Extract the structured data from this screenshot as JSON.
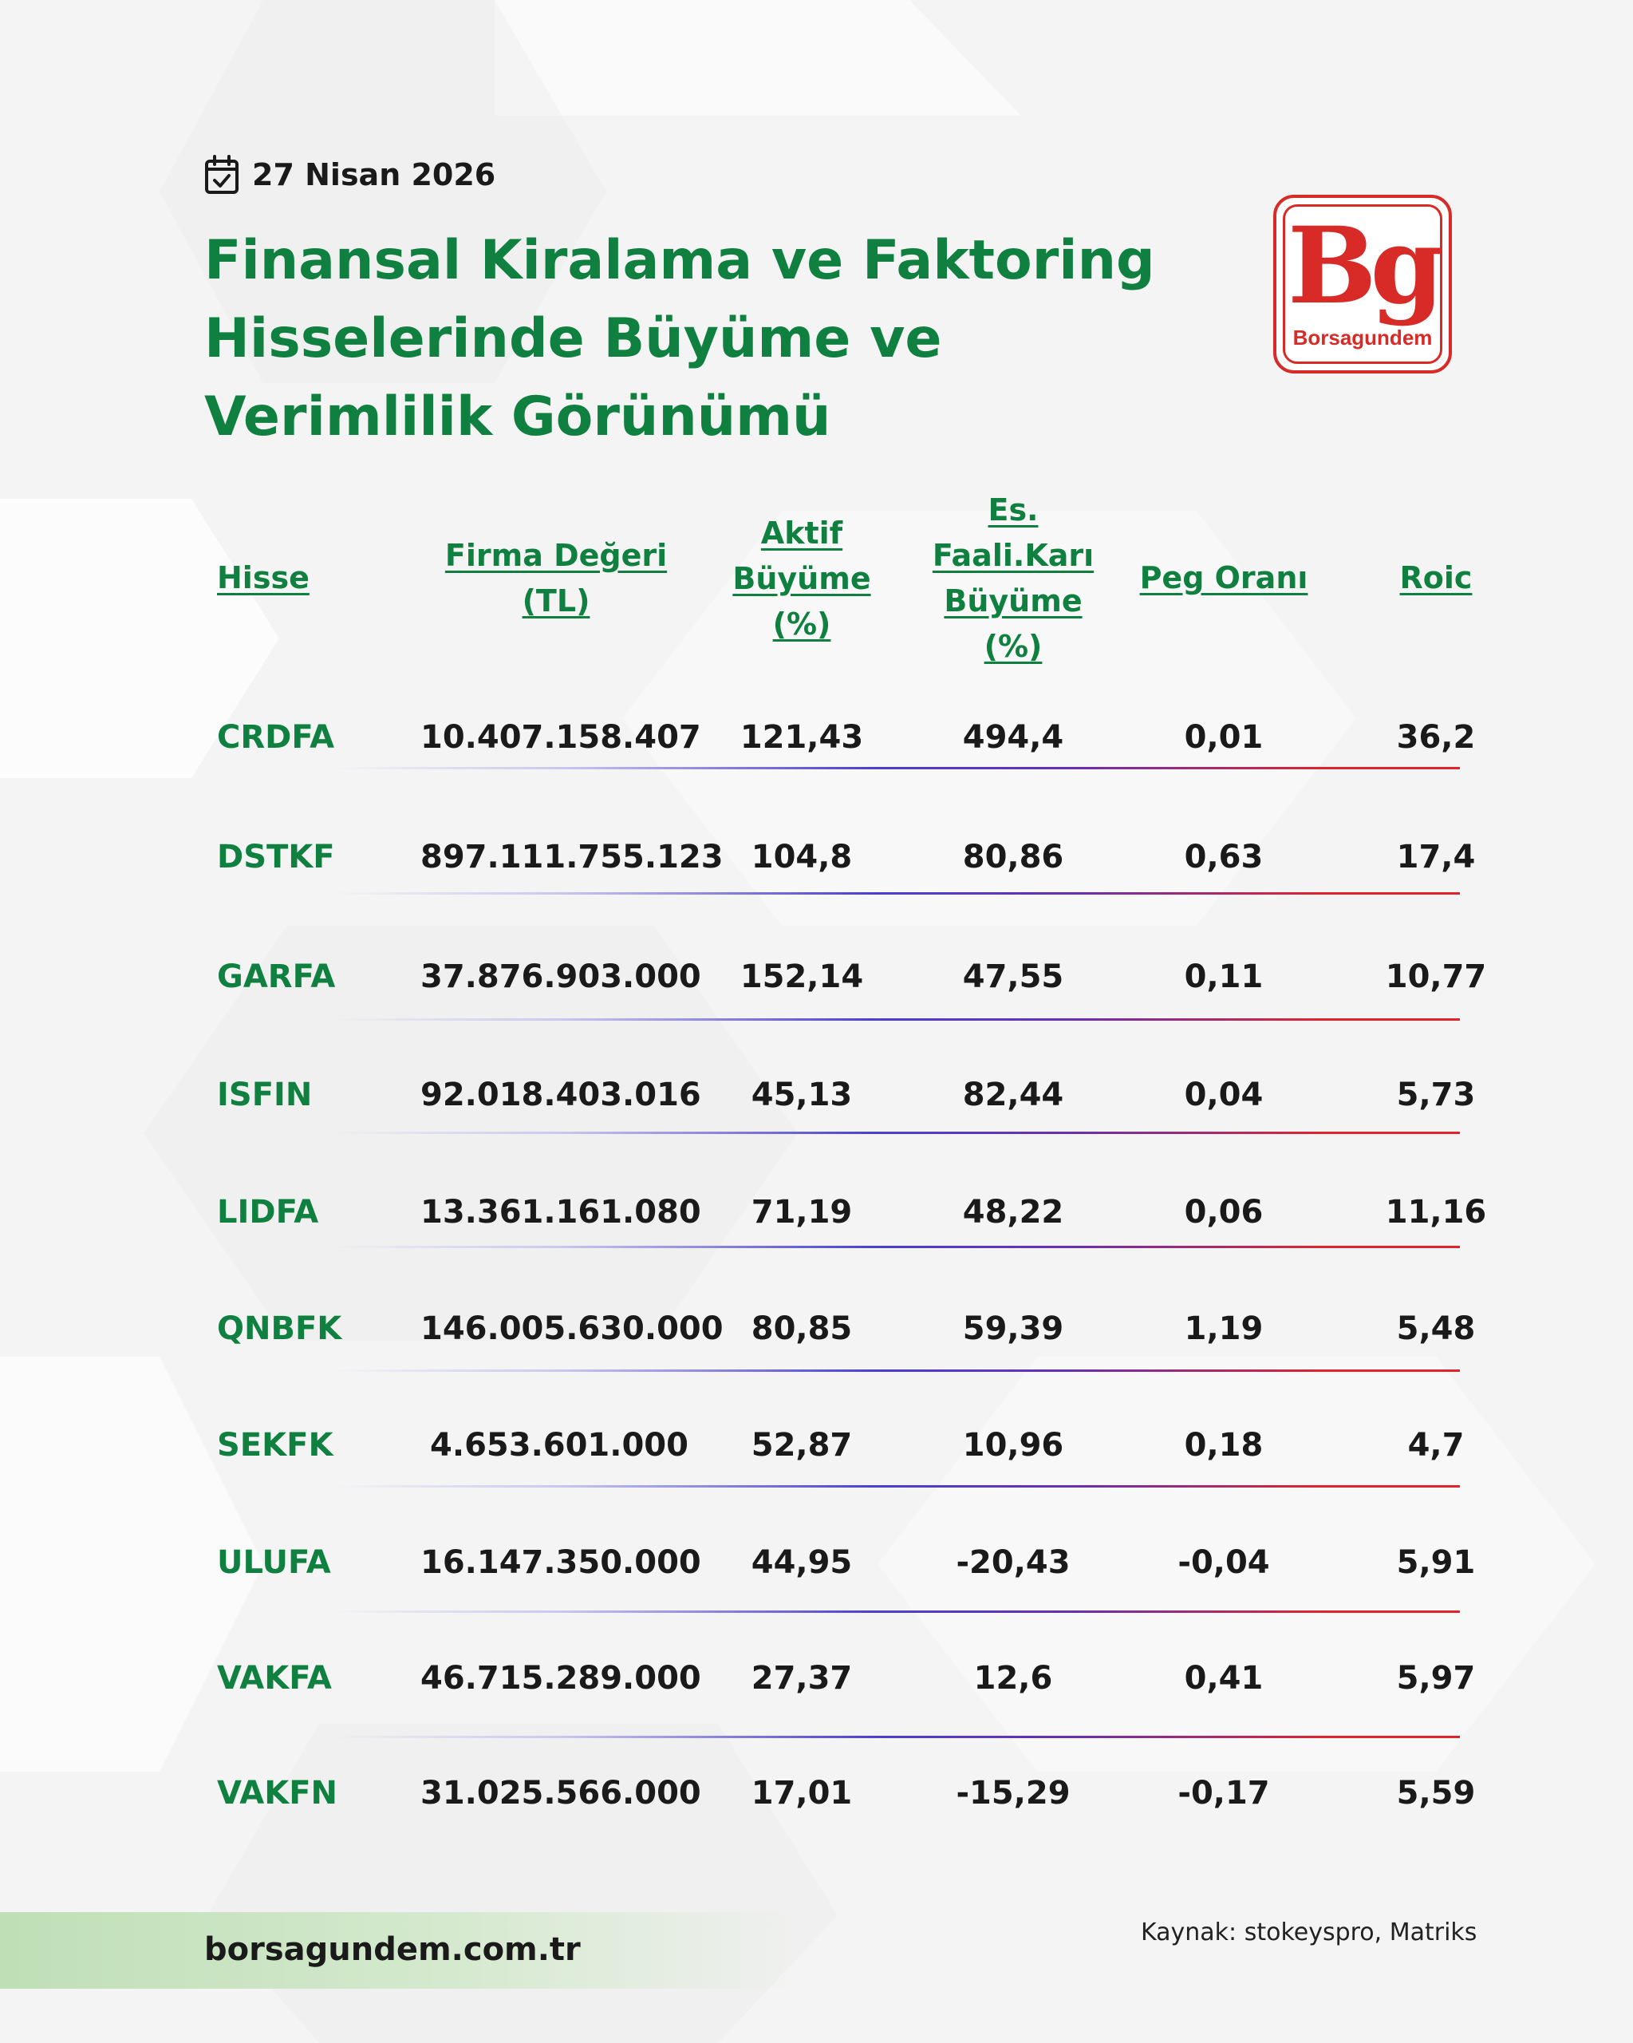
{
  "date": "27 Nisan 2026",
  "icons": {
    "date": "calendar-check-icon"
  },
  "title": "Finansal Kiralama ve Faktoring Hisselerinde Büyüme ve Verimlilik Görünümü",
  "logo": {
    "letters": "Bg",
    "wordmark": "Borsagundem"
  },
  "table": {
    "headers": {
      "hisse": [
        "Hisse"
      ],
      "firma": [
        "Firma Değeri",
        "(TL)"
      ],
      "aktif": [
        "Aktif",
        "Büyüme",
        "(%)"
      ],
      "es": [
        "Es.",
        "Faali.Karı",
        "Büyüme",
        "(%)"
      ],
      "peg": [
        "Peg Oranı"
      ],
      "roic": [
        "Roic"
      ]
    },
    "rows": [
      {
        "ticker": "CRDFA",
        "firma": "10.407.158.407",
        "aktif": "121,43",
        "es": "494,4",
        "peg": "0,01",
        "roic": "36,2"
      },
      {
        "ticker": "DSTKF",
        "firma": "897.111.755.123",
        "aktif": "104,8",
        "es": "80,86",
        "peg": "0,63",
        "roic": "17,4"
      },
      {
        "ticker": "GARFA",
        "firma": "37.876.903.000",
        "aktif": "152,14",
        "es": "47,55",
        "peg": "0,11",
        "roic": "10,77"
      },
      {
        "ticker": "ISFIN",
        "firma": "92.018.403.016",
        "aktif": "45,13",
        "es": "82,44",
        "peg": "0,04",
        "roic": "5,73"
      },
      {
        "ticker": "LIDFA",
        "firma": "13.361.161.080",
        "aktif": "71,19",
        "es": "48,22",
        "peg": "0,06",
        "roic": "11,16"
      },
      {
        "ticker": "QNBFK",
        "firma": "146.005.630.000",
        "aktif": "80,85",
        "es": "59,39",
        "peg": "1,19",
        "roic": "5,48"
      },
      {
        "ticker": "SEKFK",
        "firma": "4.653.601.000",
        "aktif": "52,87",
        "es": "10,96",
        "peg": "0,18",
        "roic": "4,7"
      },
      {
        "ticker": "ULUFA",
        "firma": "16.147.350.000",
        "aktif": "44,95",
        "es": "-20,43",
        "peg": "-0,04",
        "roic": "5,91"
      },
      {
        "ticker": "VAKFA",
        "firma": "46.715.289.000",
        "aktif": "27,37",
        "es": "12,6",
        "peg": "0,41",
        "roic": "5,97"
      },
      {
        "ticker": "VAKFN",
        "firma": "31.025.566.000",
        "aktif": "17,01",
        "es": "-15,29",
        "peg": "-0,17",
        "roic": "5,59"
      }
    ]
  },
  "footer": {
    "url": "borsagundem.com.tr",
    "source": "Kaynak: stokeyspro, Matriks"
  },
  "colors": {
    "title_green": "#0f8040",
    "brand_red": "#d82a26",
    "text": "#1a1a1a"
  }
}
